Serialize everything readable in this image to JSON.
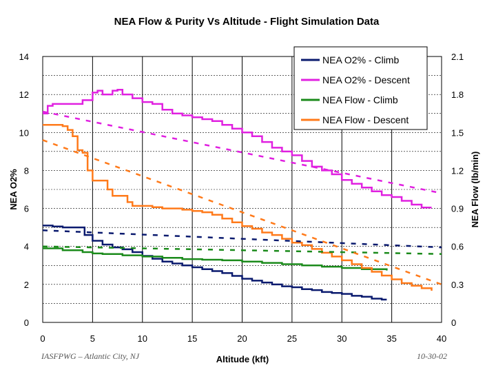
{
  "chart_data": {
    "type": "line",
    "title": "NEA Flow & Purity Vs Altitude - Flight Simulation Data",
    "xlabel": "Altitude (kft)",
    "ylabel": "NEA O2%",
    "y2label": "NEA Flow (lb/min)",
    "xlim": [
      0,
      40
    ],
    "ylim": [
      0,
      14
    ],
    "y2lim": [
      0,
      2.1
    ],
    "xticks": [
      "0",
      "5",
      "10",
      "15",
      "20",
      "25",
      "30",
      "35",
      "40"
    ],
    "yticks": [
      "0",
      "2",
      "4",
      "6",
      "8",
      "10",
      "12",
      "14"
    ],
    "y2ticks": [
      "0",
      "0.3",
      "0.6",
      "0.9",
      "1.2",
      "1.5",
      "1.8",
      "2.1"
    ],
    "grid": "horizontal dashed, vertical solid at major ticks",
    "legend_position": "top-right",
    "series": [
      {
        "name": "NEA O2% - Climb",
        "axis": "left",
        "color": "#0a1a6e",
        "x": [
          0,
          1,
          2,
          3,
          3.8,
          4.2,
          5,
          6,
          7,
          8,
          9,
          10,
          11,
          12,
          13,
          14,
          15,
          16,
          17,
          18,
          19,
          20,
          21,
          22,
          23,
          24,
          25,
          26,
          27,
          28,
          29,
          30,
          31,
          32,
          33,
          34,
          34.5
        ],
        "y": [
          5.1,
          5.05,
          5.0,
          5.0,
          5.0,
          4.6,
          4.3,
          4.1,
          3.95,
          3.85,
          3.7,
          3.5,
          3.35,
          3.2,
          3.1,
          3.0,
          2.9,
          2.8,
          2.7,
          2.6,
          2.45,
          2.3,
          2.2,
          2.1,
          2.0,
          1.9,
          1.85,
          1.75,
          1.7,
          1.6,
          1.55,
          1.5,
          1.4,
          1.35,
          1.25,
          1.2,
          1.2
        ]
      },
      {
        "name": "NEA O2% - Descent",
        "axis": "left",
        "color": "#e020e0",
        "x": [
          0,
          0.5,
          1,
          2,
          3,
          4,
          5,
          5.5,
          6,
          7,
          7.5,
          8,
          9,
          10,
          11,
          12,
          13,
          14,
          15,
          16,
          17,
          18,
          19,
          20,
          21,
          22,
          23,
          24,
          25,
          26,
          27,
          28,
          29,
          30,
          31,
          32,
          33,
          34,
          35,
          36,
          37,
          38,
          39
        ],
        "y": [
          11.0,
          11.4,
          11.5,
          11.5,
          11.5,
          11.7,
          12.1,
          12.2,
          12.0,
          12.2,
          12.25,
          12.0,
          11.8,
          11.6,
          11.5,
          11.2,
          11.0,
          10.9,
          10.8,
          10.7,
          10.6,
          10.4,
          10.2,
          10.0,
          9.8,
          9.5,
          9.2,
          9.0,
          8.8,
          8.5,
          8.2,
          8.0,
          7.8,
          7.5,
          7.3,
          7.1,
          6.9,
          6.7,
          6.6,
          6.4,
          6.2,
          6.05,
          6.05
        ]
      },
      {
        "name": "NEA Flow - Climb",
        "axis": "right",
        "color": "#1a8a1a",
        "x": [
          0,
          2,
          4,
          5,
          6,
          8,
          10,
          12,
          14,
          16,
          18,
          20,
          22,
          24,
          26,
          28,
          30,
          32,
          34.5
        ],
        "y": [
          0.585,
          0.57,
          0.555,
          0.545,
          0.54,
          0.53,
          0.52,
          0.51,
          0.5,
          0.495,
          0.49,
          0.48,
          0.47,
          0.46,
          0.45,
          0.44,
          0.43,
          0.42,
          0.41
        ]
      },
      {
        "name": "NEA Flow - Descent",
        "axis": "right",
        "color": "#ff7a1a",
        "x": [
          0,
          1,
          2,
          2.5,
          3,
          3.5,
          4,
          4.5,
          5,
          6,
          6.5,
          7,
          8,
          8.5,
          9,
          10,
          11,
          12,
          13,
          14,
          15,
          16,
          17,
          18,
          19,
          20,
          21,
          22,
          23,
          24,
          25,
          26,
          27,
          28,
          29,
          30,
          31,
          32,
          33,
          34,
          35,
          36,
          37,
          38,
          39
        ],
        "y": [
          1.56,
          1.56,
          1.55,
          1.52,
          1.47,
          1.36,
          1.34,
          1.2,
          1.12,
          1.12,
          1.05,
          1.0,
          1.0,
          0.95,
          0.92,
          0.92,
          0.91,
          0.9,
          0.9,
          0.89,
          0.88,
          0.87,
          0.85,
          0.82,
          0.79,
          0.76,
          0.74,
          0.71,
          0.69,
          0.66,
          0.63,
          0.61,
          0.58,
          0.55,
          0.52,
          0.49,
          0.46,
          0.43,
          0.4,
          0.37,
          0.34,
          0.31,
          0.29,
          0.27,
          0.25
        ]
      },
      {
        "name": "NEA O2% - Climb trend",
        "axis": "left",
        "color": "#0a1a6e",
        "dashed": true,
        "x": [
          0,
          40
        ],
        "y": [
          4.85,
          3.95
        ]
      },
      {
        "name": "NEA O2% - Descent trend",
        "axis": "left",
        "color": "#e020e0",
        "dashed": true,
        "x": [
          0,
          40
        ],
        "y": [
          11.1,
          6.8
        ]
      },
      {
        "name": "NEA Flow - Climb trend",
        "axis": "right",
        "color": "#1a8a1a",
        "dashed": true,
        "x": [
          0,
          40
        ],
        "y": [
          0.6,
          0.54
        ]
      },
      {
        "name": "NEA Flow - Descent trend",
        "axis": "right",
        "color": "#ff7a1a",
        "dashed": true,
        "x": [
          0,
          40
        ],
        "y": [
          1.44,
          0.3
        ]
      }
    ],
    "legend": [
      {
        "label": "NEA O2% - Climb",
        "color": "#0a1a6e"
      },
      {
        "label": "NEA O2% - Descent",
        "color": "#e020e0"
      },
      {
        "label": "NEA Flow - Climb",
        "color": "#1a8a1a"
      },
      {
        "label": "NEA Flow - Descent",
        "color": "#ff7a1a"
      }
    ]
  },
  "footer": {
    "left": "IASFPWG – Atlantic City, NJ",
    "right": "10-30-02"
  }
}
